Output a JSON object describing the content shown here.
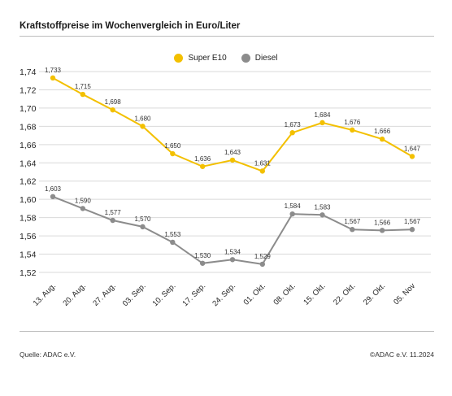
{
  "header": {
    "title": "Kraftstoffpreise im Wochenvergleich in Euro/Liter"
  },
  "footer": {
    "source": "Quelle: ADAC e.V.",
    "copyright": "©ADAC e.V. 11.2024"
  },
  "colors": {
    "super": "#f3c000",
    "diesel": "#8c8c8c",
    "grid": "#d9d9d9"
  },
  "chart_data": {
    "type": "line",
    "title": "Kraftstoffpreise im Wochenvergleich in Euro/Liter",
    "categories": [
      "13. Aug.",
      "20. Aug.",
      "27. Aug.",
      "03. Sep.",
      "10. Sep.",
      "17. Sep.",
      "24. Sep.",
      "01. Okt.",
      "08. Okt.",
      "15. Okt.",
      "22. Okt.",
      "29. Okt.",
      "05. Nov"
    ],
    "series": [
      {
        "name": "Super E10",
        "values": [
          1.733,
          1.715,
          1.698,
          1.68,
          1.65,
          1.636,
          1.643,
          1.631,
          1.673,
          1.684,
          1.676,
          1.666,
          1.647
        ],
        "labels": [
          "1,733",
          "1,715",
          "1,698",
          "1,680",
          "1,650",
          "1,636",
          "1,643",
          "1,631",
          "1,673",
          "1,684",
          "1,676",
          "1,666",
          "1,647"
        ]
      },
      {
        "name": "Diesel",
        "values": [
          1.603,
          1.59,
          1.577,
          1.57,
          1.553,
          1.53,
          1.534,
          1.529,
          1.584,
          1.583,
          1.567,
          1.566,
          1.567
        ],
        "labels": [
          "1,603",
          "1,590",
          "1,577",
          "1,570",
          "1,553",
          "1,530",
          "1,534",
          "1,529",
          "1,584",
          "1,583",
          "1,567",
          "1,566",
          "1,567"
        ]
      }
    ],
    "yticks": [
      "1,52",
      "1,54",
      "1,56",
      "1,58",
      "1,60",
      "1,62",
      "1,64",
      "1,66",
      "1,68",
      "1,70",
      "1,72",
      "1,74"
    ],
    "ylim": [
      1.52,
      1.74
    ],
    "grid": true,
    "legend_position": "top-center"
  }
}
